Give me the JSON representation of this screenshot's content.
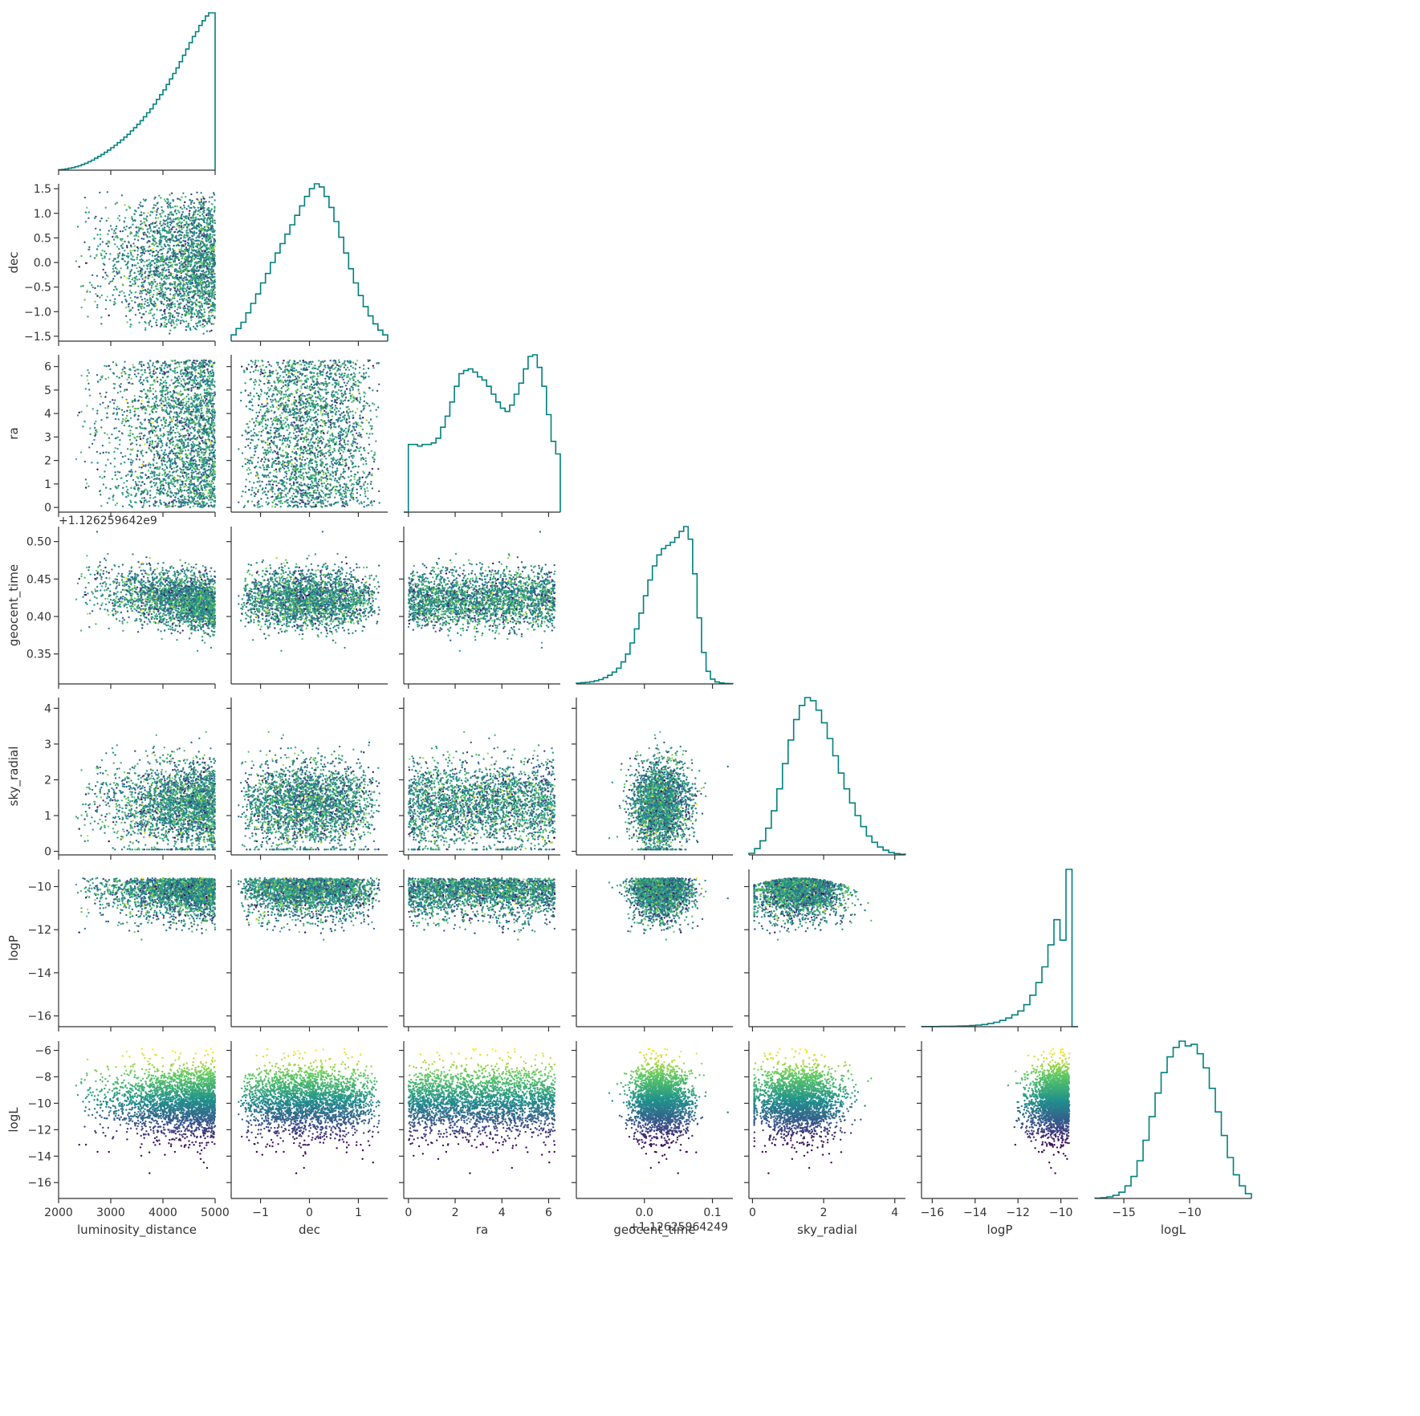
{
  "chart_data": {
    "type": "corner",
    "description_of_layout": "lower-triangular pair plot",
    "colors": {
      "hist": "#00807f",
      "axis": "#333333",
      "colormap": [
        "#440154",
        "#3b528b",
        "#21918c",
        "#5ec962",
        "#fde725"
      ]
    },
    "variables": [
      {
        "key": "luminosity_distance",
        "label": "luminosity_distance",
        "range": [
          2000,
          5000
        ],
        "ticks": [
          2000,
          3000,
          4000,
          5000
        ],
        "tick_labels": [
          "2000",
          "3000",
          "4000",
          "5000"
        ]
      },
      {
        "key": "dec",
        "label": "dec",
        "range": [
          -1.6,
          1.6
        ],
        "ticks": [
          -1.5,
          -1.0,
          -0.5,
          0.0,
          0.5,
          1.0,
          1.5
        ],
        "tick_labels": [
          "−1.5",
          "−1.0",
          "−0.5",
          "0.0",
          "0.5",
          "1.0",
          "1.5"
        ],
        "xticks": [
          -1,
          0,
          1
        ],
        "xtick_labels": [
          "−1",
          "0",
          "1"
        ]
      },
      {
        "key": "ra",
        "label": "ra",
        "range": [
          -0.2,
          6.5
        ],
        "ticks": [
          0,
          1,
          2,
          3,
          4,
          5,
          6
        ],
        "tick_labels": [
          "0",
          "1",
          "2",
          "3",
          "4",
          "5",
          "6"
        ],
        "xticks": [
          0,
          2,
          4,
          6
        ],
        "xtick_labels": [
          "0",
          "2",
          "4",
          "6"
        ]
      },
      {
        "key": "geocent_time",
        "label": "geocent_time",
        "range": [
          0.31,
          0.52
        ],
        "ticks": [
          0.35,
          0.4,
          0.45,
          0.5
        ],
        "tick_labels": [
          "0.35",
          "0.40",
          "0.45",
          "0.50"
        ],
        "offset_label": "+1.126259642e9"
      },
      {
        "key": "sky_radial",
        "label": "sky_radial",
        "range": [
          -0.1,
          4.3
        ],
        "ticks": [
          0,
          1,
          2,
          3,
          4
        ],
        "tick_labels": [
          "0",
          "1",
          "2",
          "3",
          "4"
        ],
        "xticks": [
          0,
          2,
          4
        ],
        "xtick_labels": [
          "0",
          "2",
          "4"
        ]
      },
      {
        "key": "logP",
        "label": "logP",
        "range": [
          -16.5,
          -9.2
        ],
        "ticks": [
          -10,
          -12,
          -14,
          -16
        ],
        "tick_labels": [
          "−10",
          "−12",
          "−14",
          "−16"
        ],
        "xticks": [
          -16,
          -14,
          -12,
          -10
        ],
        "xtick_labels": [
          "−16",
          "−14",
          "−12",
          "−10"
        ]
      },
      {
        "key": "logL",
        "label": "logL",
        "range": [
          -17.2,
          -5.3
        ],
        "ticks": [
          -6,
          -8,
          -10,
          -12,
          -14,
          -16
        ],
        "tick_labels": [
          "−6",
          "−8",
          "−10",
          "−12",
          "−14",
          "−16"
        ],
        "xticks": [
          -15,
          -10
        ],
        "xtick_labels": [
          "−15",
          "−10"
        ]
      }
    ],
    "geocent_time_xaxis": {
      "range": [
        -0.1,
        0.13
      ],
      "ticks": [
        0.0,
        0.1
      ],
      "tick_labels": [
        "0.0",
        "0.1"
      ],
      "offset_label": "+1.12625964249"
    },
    "histograms": {
      "luminosity_distance": [
        0.003,
        0.005,
        0.008,
        0.012,
        0.016,
        0.022,
        0.028,
        0.036,
        0.044,
        0.054,
        0.064,
        0.076,
        0.088,
        0.1,
        0.114,
        0.128,
        0.143,
        0.158,
        0.175,
        0.192,
        0.21,
        0.228,
        0.25,
        0.27,
        0.292,
        0.315,
        0.34,
        0.365,
        0.39,
        0.42,
        0.45,
        0.48,
        0.51,
        0.545,
        0.58,
        0.615,
        0.65,
        0.69,
        0.73,
        0.77,
        0.81,
        0.85,
        0.88,
        0.92,
        0.95,
        0.98,
        1.0,
        1.0
      ],
      "dec": [
        0.04,
        0.08,
        0.12,
        0.18,
        0.24,
        0.3,
        0.37,
        0.43,
        0.5,
        0.56,
        0.62,
        0.68,
        0.74,
        0.8,
        0.86,
        0.92,
        0.97,
        1.0,
        0.98,
        0.92,
        0.85,
        0.76,
        0.66,
        0.56,
        0.46,
        0.37,
        0.29,
        0.22,
        0.16,
        0.11,
        0.07,
        0.04
      ],
      "ra": [
        0.0,
        0.43,
        0.43,
        0.42,
        0.43,
        0.43,
        0.44,
        0.47,
        0.54,
        0.61,
        0.7,
        0.8,
        0.88,
        0.9,
        0.91,
        0.89,
        0.86,
        0.84,
        0.8,
        0.75,
        0.7,
        0.66,
        0.64,
        0.68,
        0.75,
        0.82,
        0.91,
        0.99,
        1.0,
        0.92,
        0.8,
        0.62,
        0.45,
        0.37
      ],
      "geocent_time": [
        0.005,
        0.008,
        0.01,
        0.014,
        0.02,
        0.028,
        0.04,
        0.055,
        0.075,
        0.1,
        0.14,
        0.19,
        0.26,
        0.35,
        0.45,
        0.56,
        0.66,
        0.75,
        0.82,
        0.86,
        0.88,
        0.9,
        0.93,
        0.97,
        1.0,
        0.92,
        0.7,
        0.42,
        0.2,
        0.08,
        0.03,
        0.012,
        0.006,
        0.003,
        0.002
      ],
      "sky_radial": [
        0.01,
        0.04,
        0.09,
        0.17,
        0.28,
        0.42,
        0.58,
        0.73,
        0.86,
        0.95,
        1.0,
        0.98,
        0.92,
        0.84,
        0.74,
        0.63,
        0.52,
        0.42,
        0.33,
        0.25,
        0.18,
        0.12,
        0.08,
        0.05,
        0.03,
        0.015,
        0.008,
        0.004
      ],
      "logP": [
        0.001,
        0.001,
        0.001,
        0.002,
        0.002,
        0.003,
        0.004,
        0.005,
        0.007,
        0.01,
        0.014,
        0.02,
        0.028,
        0.04,
        0.055,
        0.075,
        0.1,
        0.14,
        0.2,
        0.28,
        0.38,
        0.52,
        0.68,
        0.55,
        1.0,
        0.0
      ],
      "logL": [
        0.002,
        0.005,
        0.01,
        0.02,
        0.04,
        0.08,
        0.14,
        0.24,
        0.37,
        0.52,
        0.67,
        0.8,
        0.9,
        0.96,
        1.0,
        0.97,
        0.98,
        0.92,
        0.83,
        0.7,
        0.55,
        0.4,
        0.26,
        0.15,
        0.08,
        0.03
      ]
    },
    "scatter_points_per_panel": 2600
  }
}
